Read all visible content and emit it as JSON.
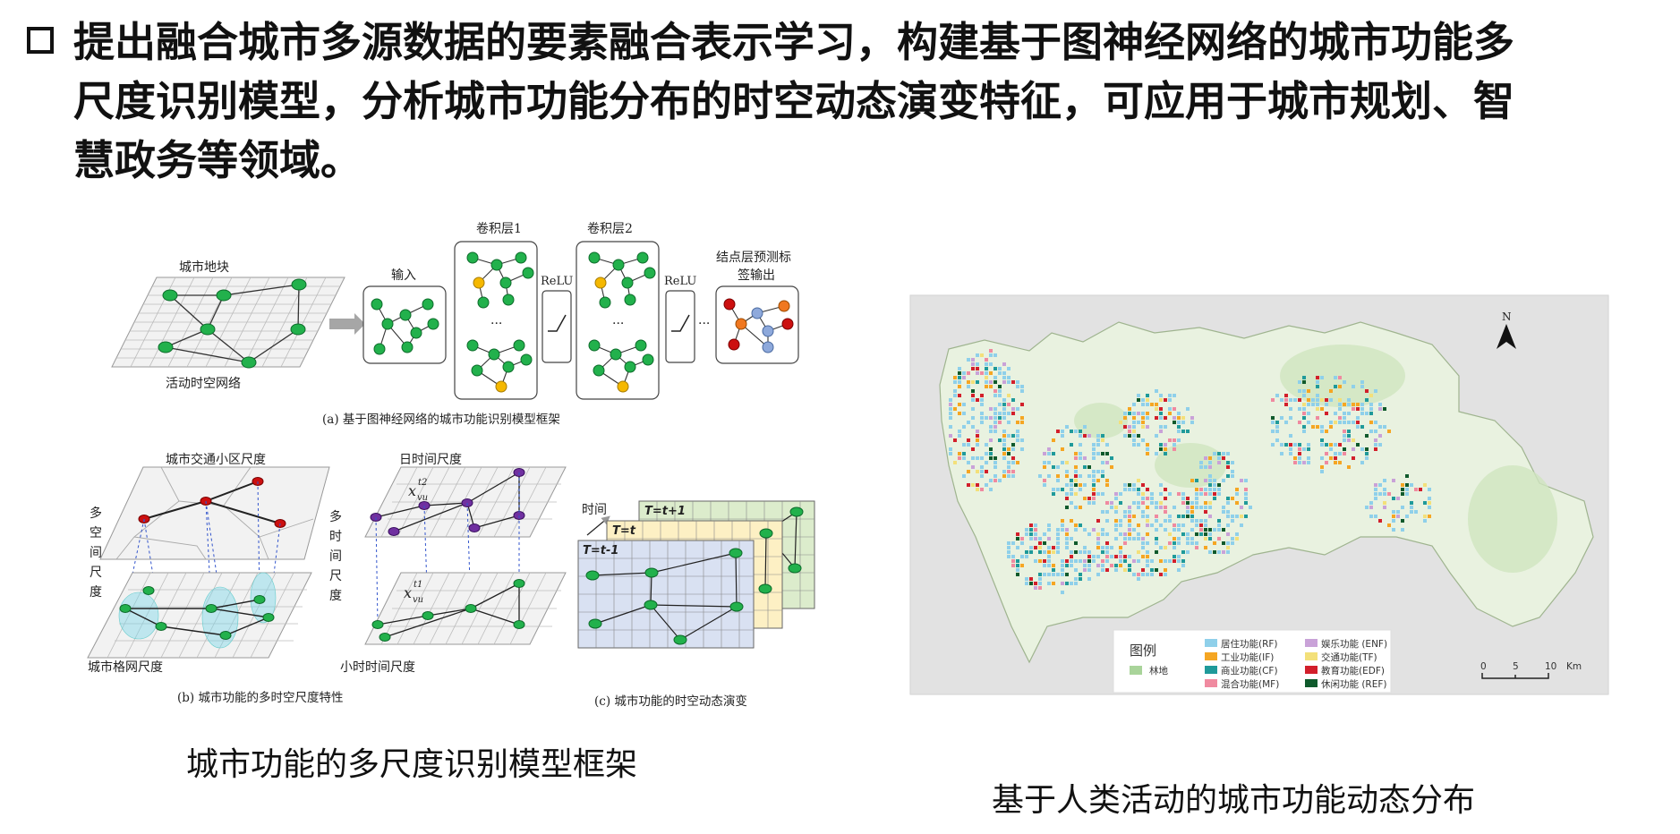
{
  "headline": "提出融合城市多源数据的要素融合表示学习，构建基于图神经网络的城市功能多尺度识别模型，分析城市功能分布的时空动态演变特征，可应用于城市规划、智慧政务等领域。",
  "headline_lines": [
    "提出融合城市多源数据的要素融合表示学习，构建基于图神经网络的城市功能多",
    "尺度识别模型，分析城市功能分布的时空动态演变特征，可应用于城市规划、智",
    "慧政务等领域。"
  ],
  "panel_a": {
    "label_plots": "城市地块",
    "label_network": "活动时空网络",
    "label_input": "输入",
    "label_conv1": "卷积层1",
    "label_conv2": "卷积层2",
    "label_relu1": "ReLU",
    "label_relu2": "ReLU",
    "label_output_1": "结点层预测标",
    "label_output_2": "签输出",
    "ellipsis": "...",
    "caption": "(a) 基于图神经网络的城市功能识别模型框架"
  },
  "panel_b": {
    "label_traffic": "城市交通小区尺度",
    "label_multi_space": "多空间尺度",
    "label_grid": "城市格网尺度",
    "label_day": "日时间尺度",
    "label_multi_time": "多时间尺度",
    "label_hour": "小时时间尺度",
    "x_top": "x",
    "x_top_sup": "t2",
    "x_top_sub": "vu",
    "x_bot": "x",
    "x_bot_sup": "t1",
    "x_bot_sub": "vu",
    "caption": "(b) 城市功能的多时空尺度特性"
  },
  "panel_c": {
    "label_time": "时间",
    "label_t_plus": "T=t+1",
    "label_t": "T=t",
    "label_t_minus": "T=t-1",
    "caption": "(c) 城市功能的时空动态演变"
  },
  "map": {
    "north": "N",
    "legend_title": "图例",
    "legend_forest": "林地",
    "legend_items": [
      {
        "label": "居住功能(RF)",
        "color": "#8fd0ea"
      },
      {
        "label": "娱乐功能 (ENF)",
        "color": "#c9a2d8"
      },
      {
        "label": "工业功能(IF)",
        "color": "#f5a623"
      },
      {
        "label": "交通功能(TF)",
        "color": "#f3e07a"
      },
      {
        "label": "商业功能(CF)",
        "color": "#1f9a9a"
      },
      {
        "label": "教育功能(EDF)",
        "color": "#d21f2b"
      },
      {
        "label": "混合功能(MF)",
        "color": "#f08aa0"
      },
      {
        "label": "休闲功能 (REF)",
        "color": "#0f5a2c"
      }
    ],
    "forest_color": "#a9d49a",
    "scale_0": "0",
    "scale_5": "5",
    "scale_10": "10",
    "scale_unit": "Km"
  },
  "captions": {
    "left": "城市功能的多尺度识别模型框架",
    "right": "基于人类活动的城市功能动态分布"
  },
  "colors": {
    "node_green": "#22b14c",
    "node_yellow": "#f5b800",
    "node_red": "#cc1010",
    "node_purple": "#7030a0",
    "node_orange": "#f07820",
    "node_blue": "#8ea9db"
  }
}
